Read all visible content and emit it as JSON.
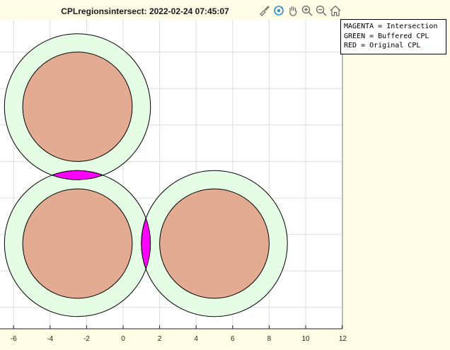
{
  "title": "CPLregionsintersect: 2022-02-24 07:45:07",
  "toolbar": {
    "icons": [
      "brush-icon",
      "rotate-icon",
      "pan-icon",
      "zoom-in-icon",
      "zoom-out-icon",
      "home-icon"
    ]
  },
  "legend": {
    "line1": "MAGENTA = Intersection",
    "line2": "GREEN = Buffered CPL",
    "line3": "RED = Original CPL"
  },
  "colors": {
    "background": "#fffde6",
    "axes": "#ffffff",
    "buffered": "#e4fde4",
    "original": "#e3ac92",
    "intersection": "#ff00ff",
    "grid": "#dddddd"
  },
  "chart_data": {
    "type": "scatter",
    "xlim": [
      -7,
      12
    ],
    "x_ticks": [
      -6,
      -4,
      -2,
      0,
      2,
      4,
      6,
      8,
      10,
      12
    ],
    "grid": true,
    "original_circles": [
      {
        "cx": -2.5,
        "cy": 5.0,
        "r": 3.0
      },
      {
        "cx": -2.5,
        "cy": -2.5,
        "r": 3.0
      },
      {
        "cx": 5.0,
        "cy": -2.5,
        "r": 3.0
      }
    ],
    "buffered_circles": [
      {
        "cx": -2.5,
        "cy": 5.0,
        "r": 4.0
      },
      {
        "cx": -2.5,
        "cy": -2.5,
        "r": 4.0
      },
      {
        "cx": 5.0,
        "cy": -2.5,
        "r": 4.0
      }
    ],
    "intersections": [
      {
        "between": [
          0,
          1
        ]
      },
      {
        "between": [
          1,
          2
        ]
      }
    ]
  }
}
